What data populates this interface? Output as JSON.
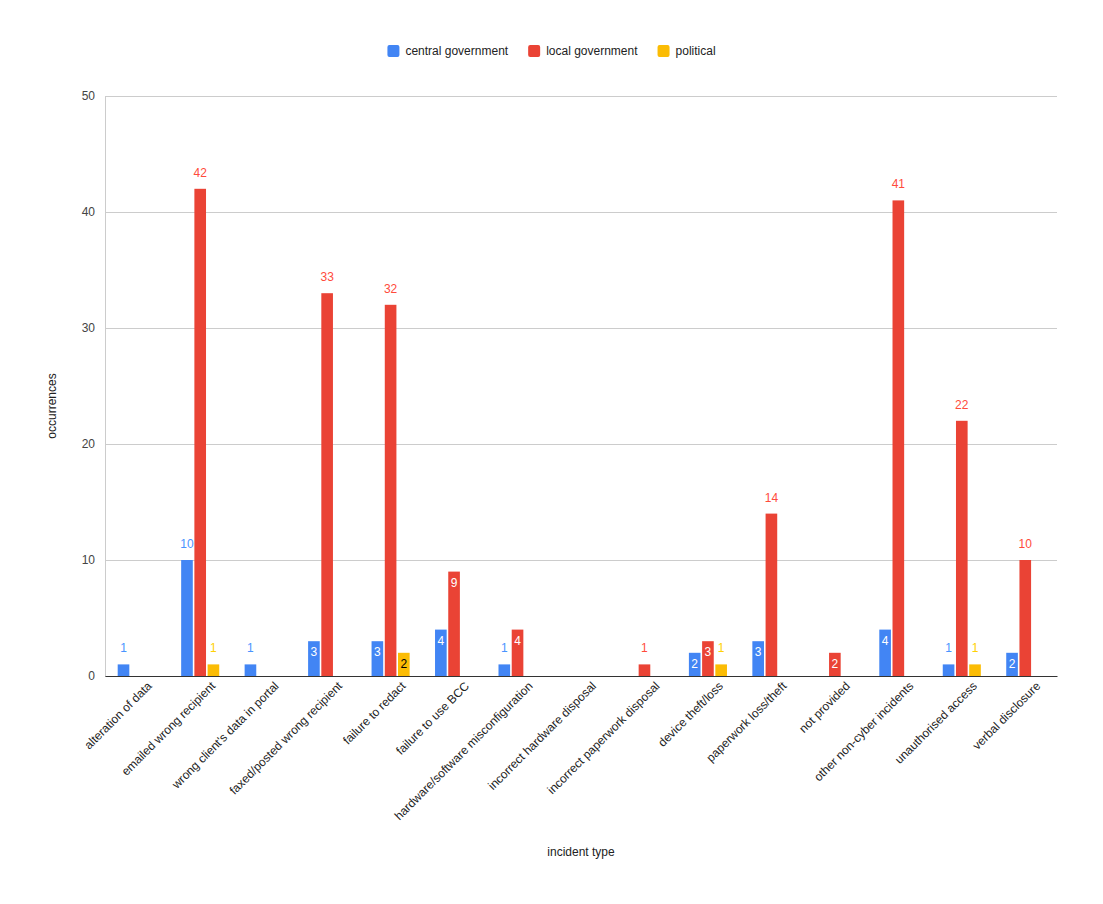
{
  "chart_data": {
    "type": "bar",
    "categories": [
      "alteration of data",
      "emailed wrong recipient",
      "wrong client's data in portal",
      "faxed/posted wrong recipient",
      "failure to redact",
      "failure to use BCC",
      "hardware/software misconfiguration",
      "incorrect hardware disposal",
      "incorrect paperwork disposal",
      "device theft/loss",
      "paperwork loss/theft",
      "not provided",
      "other non-cyber incidents",
      "unauthorised access",
      "verbal disclosure"
    ],
    "series": [
      {
        "name": "central government",
        "color": "#4285f4",
        "values": [
          1,
          10,
          1,
          3,
          3,
          4,
          1,
          null,
          null,
          2,
          3,
          null,
          4,
          1,
          2
        ]
      },
      {
        "name": "local government",
        "color": "#ea4335",
        "values": [
          null,
          42,
          null,
          33,
          32,
          9,
          4,
          null,
          1,
          3,
          14,
          2,
          41,
          22,
          10
        ]
      },
      {
        "name": "political",
        "color": "#fbbc04",
        "values": [
          null,
          1,
          null,
          null,
          2,
          null,
          null,
          null,
          null,
          1,
          null,
          null,
          null,
          1,
          null
        ]
      }
    ],
    "x_label": "incident type",
    "y_label": "occurrences",
    "ylim": [
      0,
      50
    ],
    "yticks": [
      0,
      10,
      20,
      30,
      40,
      50
    ],
    "grid": true,
    "legend": "top",
    "data_labels": true
  }
}
